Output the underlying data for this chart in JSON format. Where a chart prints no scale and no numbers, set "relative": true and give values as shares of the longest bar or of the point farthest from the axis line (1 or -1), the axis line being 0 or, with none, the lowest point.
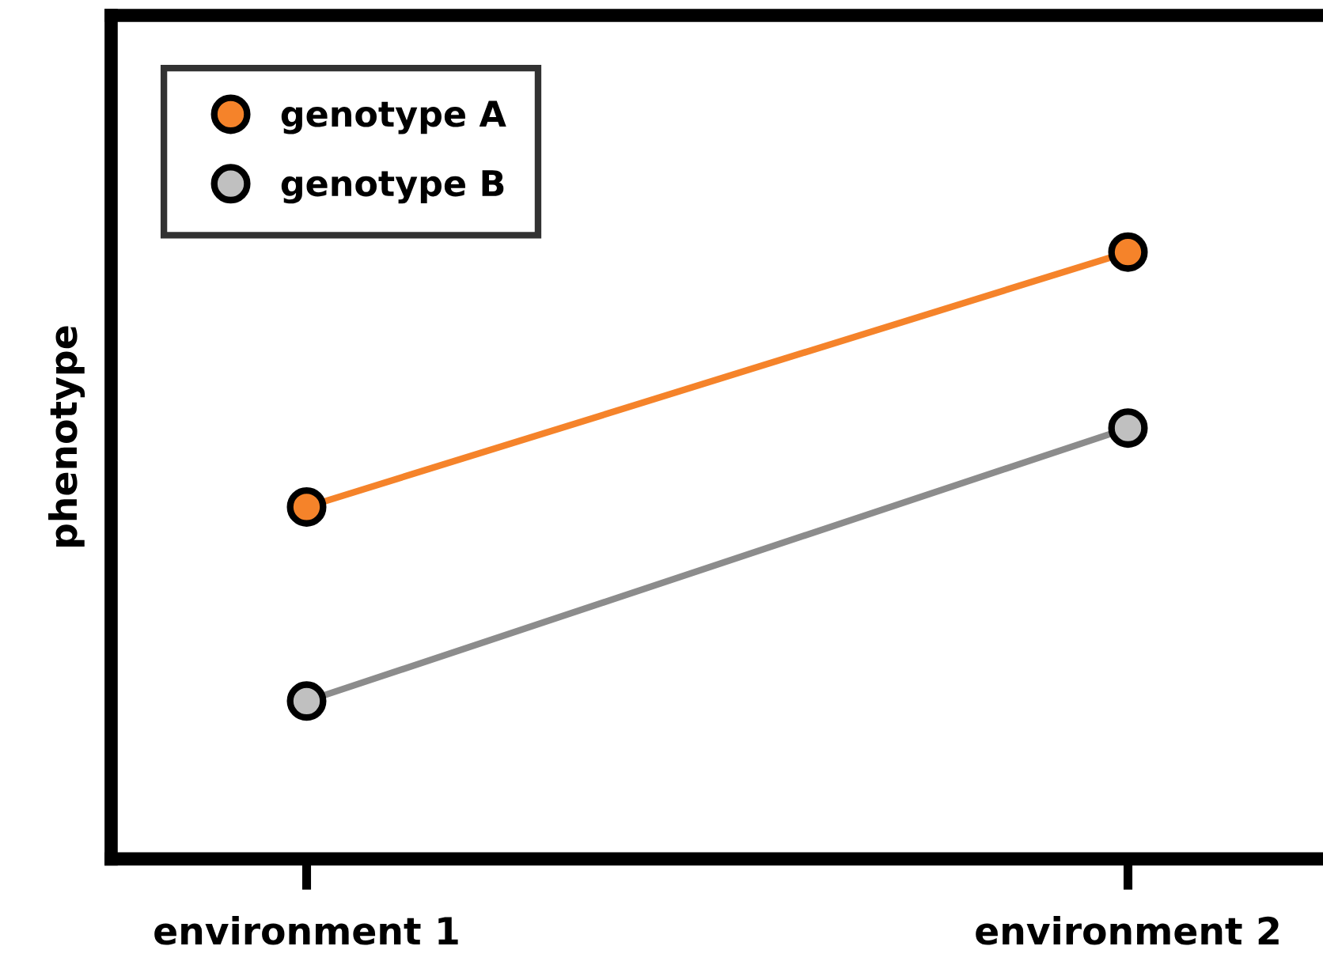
{
  "chart_data": {
    "type": "line",
    "relative": true,
    "ylabel": "phenotype",
    "categories": [
      "environment 1",
      "environment 2"
    ],
    "series": [
      {
        "name": "genotype A",
        "color": "#f5832a",
        "values": [
          0.58,
          1
        ]
      },
      {
        "name": "genotype B",
        "color": "#8c8c8c",
        "values": [
          0.26,
          0.71
        ]
      }
    ],
    "marker": "circle",
    "line_style": "solid",
    "legend": "top left",
    "grid": false
  }
}
